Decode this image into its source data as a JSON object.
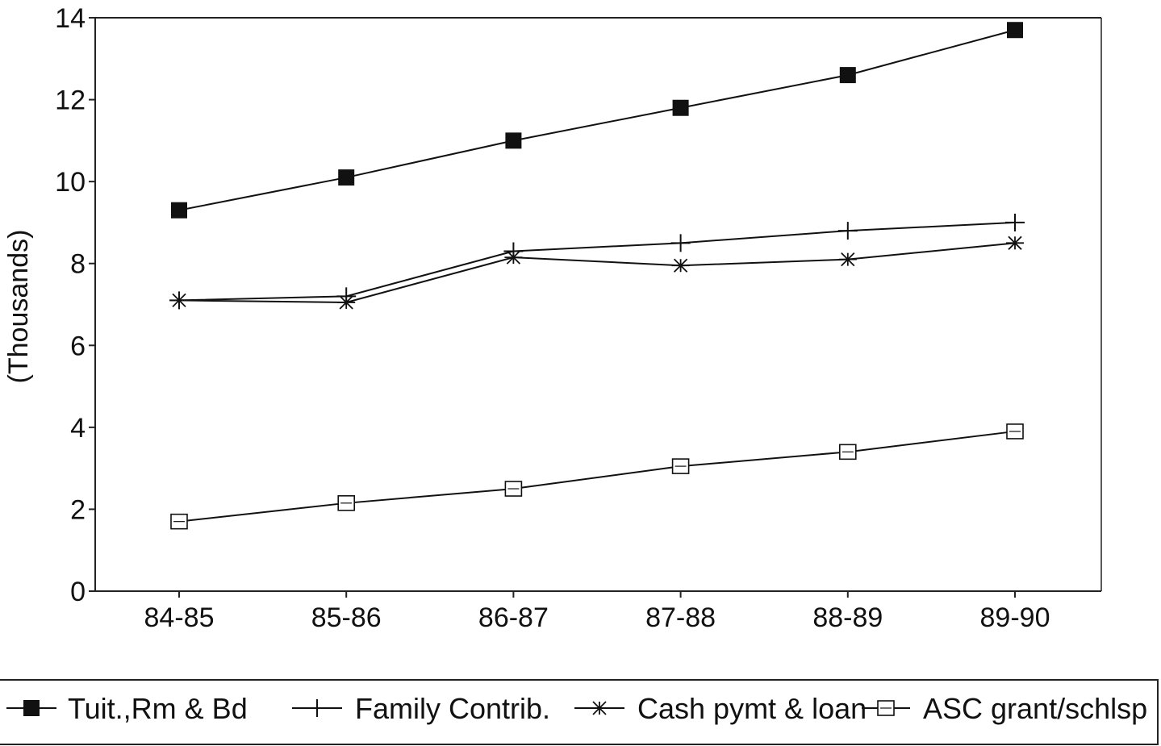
{
  "chart_data": {
    "type": "line",
    "title": "",
    "xlabel": "",
    "ylabel": "(Thousands)",
    "categories": [
      "84-85",
      "85-86",
      "86-87",
      "87-88",
      "88-89",
      "89-90"
    ],
    "ylim": [
      0,
      14
    ],
    "yticks": [
      0,
      2,
      4,
      6,
      8,
      10,
      12,
      14
    ],
    "grid": false,
    "legend_position": "bottom",
    "series": [
      {
        "name": "Tuit.,Rm & Bd",
        "marker": "filled-square",
        "values": [
          9.3,
          10.1,
          11.0,
          11.8,
          12.6,
          13.7
        ]
      },
      {
        "name": "Family Contrib.",
        "marker": "plus",
        "values": [
          7.1,
          7.2,
          8.3,
          8.5,
          8.8,
          9.0
        ]
      },
      {
        "name": "Cash pymt & loan",
        "marker": "asterisk",
        "values": [
          7.1,
          7.05,
          8.15,
          7.95,
          8.1,
          8.5
        ]
      },
      {
        "name": "ASC grant/schlsp",
        "marker": "open-square",
        "values": [
          1.7,
          2.15,
          2.5,
          3.05,
          3.4,
          3.9
        ]
      }
    ],
    "colors": {
      "line": "#111111",
      "frame": "#222222"
    }
  }
}
